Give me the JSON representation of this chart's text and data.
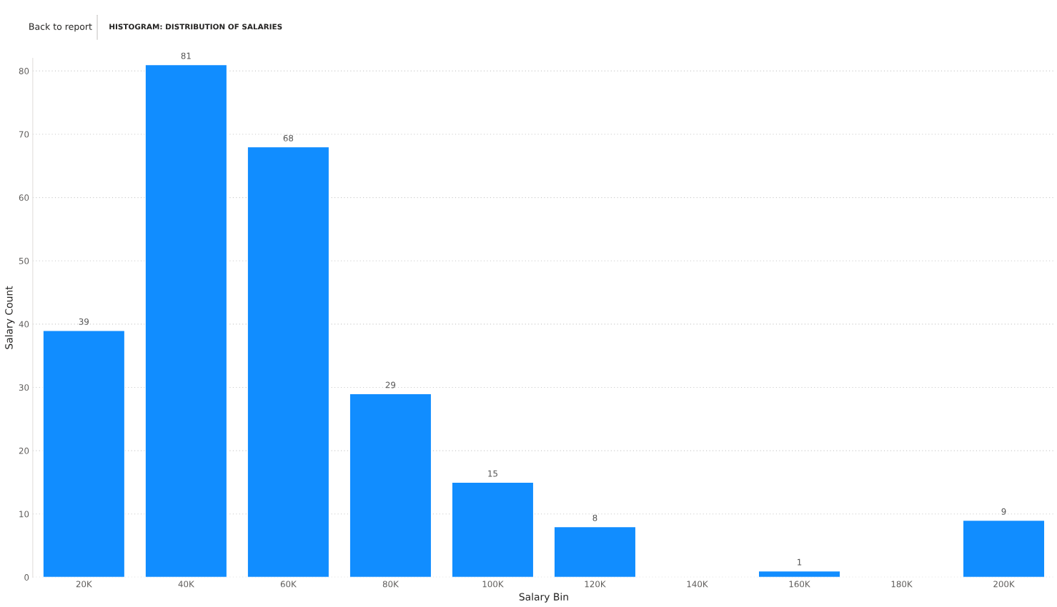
{
  "chart_data": {
    "type": "bar",
    "title": "HISTOGRAM: DISTRIBUTION OF SALARIES",
    "annotations": [
      "Back to report"
    ],
    "xlabel": "Salary Bin",
    "ylabel": "Salary Count",
    "categories": [
      "20K",
      "40K",
      "60K",
      "80K",
      "100K",
      "120K",
      "140K",
      "160K",
      "180K",
      "200K"
    ],
    "values": [
      39,
      81,
      68,
      29,
      15,
      8,
      null,
      1,
      null,
      9
    ],
    "color": "#118dff",
    "ylim": [
      0,
      82
    ],
    "yticks": [
      0,
      10,
      20,
      30,
      40,
      50,
      60,
      70,
      80
    ],
    "grid": "y",
    "data_labels": true
  }
}
